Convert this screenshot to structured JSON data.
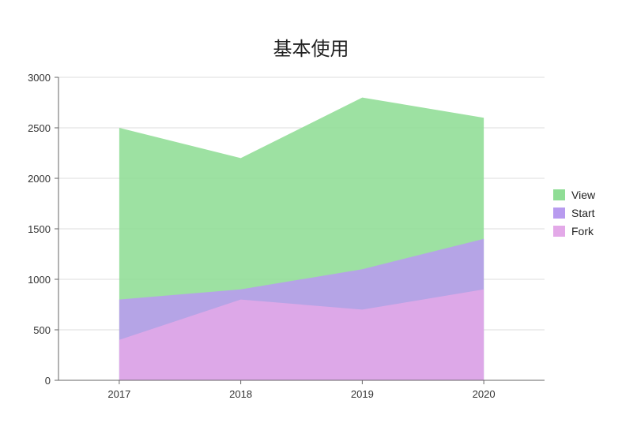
{
  "chart_data": {
    "type": "area",
    "title": "基本使用",
    "xlabel": "",
    "ylabel": "",
    "categories": [
      "2017",
      "2018",
      "2019",
      "2020"
    ],
    "ylim": [
      0,
      3000
    ],
    "yticks": [
      0,
      500,
      1000,
      1500,
      2000,
      2500,
      3000
    ],
    "grid": true,
    "legend_position": "right",
    "series": [
      {
        "name": "View",
        "values": [
          2500,
          2200,
          2800,
          2600
        ],
        "color": "#8fdd95"
      },
      {
        "name": "Start",
        "values": [
          800,
          900,
          1100,
          1400
        ],
        "color": "#b89bef"
      },
      {
        "name": "Fork",
        "values": [
          400,
          800,
          700,
          900
        ],
        "color": "#e3a9e8"
      }
    ]
  }
}
